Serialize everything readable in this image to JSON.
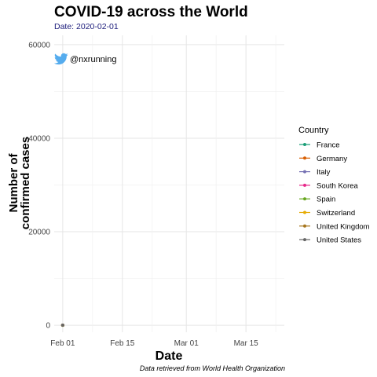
{
  "chart_data": {
    "type": "line",
    "title": "COVID-19 across the World",
    "subtitle": "Date: 2020-02-01",
    "xlabel": "Date",
    "ylabel_lines": [
      "Number of",
      "confirmed cases"
    ],
    "x_ticks": [
      "Feb 01",
      "Feb 15",
      "Mar 01",
      "Mar 15"
    ],
    "y_ticks": [
      "0",
      "20000",
      "40000",
      "60000"
    ],
    "xlim": [
      "2020-01-30",
      "2020-03-24"
    ],
    "ylim": [
      -1500,
      62000
    ],
    "grid": true,
    "legend_title": "Country",
    "legend_position": "right",
    "caption": "Data retrieved from World Health Organization",
    "twitter_handle": "@nxrunning",
    "series": [
      {
        "name": "France",
        "color": "#1b9e77",
        "points": [
          [
            "2020-02-01",
            6
          ]
        ]
      },
      {
        "name": "Germany",
        "color": "#d95f02",
        "points": [
          [
            "2020-02-01",
            8
          ]
        ]
      },
      {
        "name": "Italy",
        "color": "#7570b3",
        "points": [
          [
            "2020-02-01",
            2
          ]
        ]
      },
      {
        "name": "South Korea",
        "color": "#e7298a",
        "points": [
          [
            "2020-02-01",
            12
          ]
        ]
      },
      {
        "name": "Spain",
        "color": "#66a61e",
        "points": [
          [
            "2020-02-01",
            1
          ]
        ]
      },
      {
        "name": "Switzerland",
        "color": "#e6ab02",
        "points": [
          [
            "2020-02-01",
            0
          ]
        ]
      },
      {
        "name": "United Kingdom",
        "color": "#a6761d",
        "points": [
          [
            "2020-02-01",
            2
          ]
        ]
      },
      {
        "name": "United States",
        "color": "#666666",
        "points": [
          [
            "2020-02-01",
            8
          ]
        ]
      }
    ],
    "icons": {
      "twitter": "twitter-bird-icon",
      "twitter_color": "#55acee"
    }
  }
}
